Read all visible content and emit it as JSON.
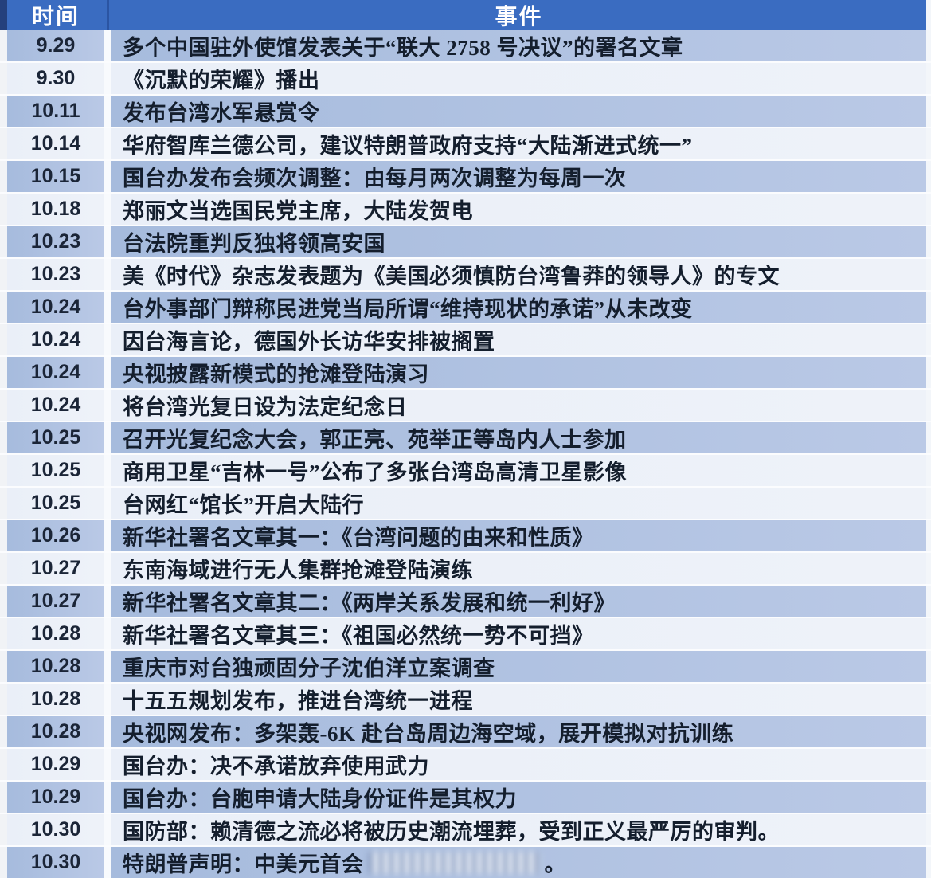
{
  "colors": {
    "header_bg": "#3a6cc1",
    "header_text": "#ffffff",
    "header_edge": "#24407c",
    "row_medium": "#a6bbdd",
    "row_medium_right": "#bac9e6",
    "row_light": "#eef2f9",
    "time_text": "#1b2537",
    "event_text": "#141e2d",
    "frame_dark": "#39404d"
  },
  "table": {
    "headers": {
      "time": "时间",
      "event": "事件"
    },
    "rows": [
      {
        "time": "9.29",
        "shade": "medium",
        "event": "多个中国驻外使馆发表关于“联大 2758 号决议”的署名文章"
      },
      {
        "time": "9.30",
        "shade": "light",
        "event": "《沉默的荣耀》播出"
      },
      {
        "time": "10.11",
        "shade": "medium",
        "event": "发布台湾水军悬赏令"
      },
      {
        "time": "10.14",
        "shade": "light",
        "event": "华府智库兰德公司，建议特朗普政府支持“大陆渐进式统一”"
      },
      {
        "time": "10.15",
        "shade": "medium",
        "event": "国台办发布会频次调整：由每月两次调整为每周一次"
      },
      {
        "time": "10.18",
        "shade": "light",
        "event": "郑丽文当选国民党主席，大陆发贺电"
      },
      {
        "time": "10.23",
        "shade": "medium",
        "event": "台法院重判反独将领高安国"
      },
      {
        "time": "10.23",
        "shade": "light",
        "event": "美《时代》杂志发表题为《美国必须慎防台湾鲁莽的领导人》的专文"
      },
      {
        "time": "10.24",
        "shade": "medium",
        "event": "台外事部门辩称民进党当局所谓“维持现状的承诺”从未改变"
      },
      {
        "time": "10.24",
        "shade": "light",
        "event": "因台海言论，德国外长访华安排被搁置"
      },
      {
        "time": "10.24",
        "shade": "medium",
        "event": "央视披露新模式的抢滩登陆演习"
      },
      {
        "time": "10.24",
        "shade": "light",
        "event": "将台湾光复日设为法定纪念日"
      },
      {
        "time": "10.25",
        "shade": "medium",
        "event": "召开光复纪念大会，郭正亮、苑举正等岛内人士参加"
      },
      {
        "time": "10.25",
        "shade": "light",
        "event": "商用卫星“吉林一号”公布了多张台湾岛高清卫星影像"
      },
      {
        "time": "10.25",
        "shade": "light",
        "event": "台网红“馆长”开启大陆行"
      },
      {
        "time": "10.26",
        "shade": "medium",
        "event": "新华社署名文章其一：《台湾问题的由来和性质》"
      },
      {
        "time": "10.27",
        "shade": "light",
        "event": "东南海域进行无人集群抢滩登陆演练"
      },
      {
        "time": "10.27",
        "shade": "medium",
        "event": "新华社署名文章其二：《两岸关系发展和统一利好》"
      },
      {
        "time": "10.28",
        "shade": "light",
        "event": "新华社署名文章其三：《祖国必然统一势不可挡》"
      },
      {
        "time": "10.28",
        "shade": "medium",
        "event": "重庆市对台独顽固分子沈伯洋立案调查"
      },
      {
        "time": "10.28",
        "shade": "light",
        "event": "十五五规划发布，推进台湾统一进程"
      },
      {
        "time": "10.28",
        "shade": "medium",
        "event": "央视网发布：多架轰-6K 赴台岛周边海空域，展开模拟对抗训练"
      },
      {
        "time": "10.29",
        "shade": "light",
        "event": "国台办：决不承诺放弃使用武力"
      },
      {
        "time": "10.29",
        "shade": "medium",
        "event": "国台办：台胞申请大陆身份证件是其权力"
      },
      {
        "time": "10.30",
        "shade": "light",
        "event": "国防部：赖清德之流必将被历史潮流埋葬，受到正义最严厉的审判。"
      },
      {
        "time": "10.30",
        "shade": "medium",
        "redacted": true,
        "event_prefix": "特朗普声明：中美元首会",
        "event_suffix": "。"
      }
    ]
  }
}
